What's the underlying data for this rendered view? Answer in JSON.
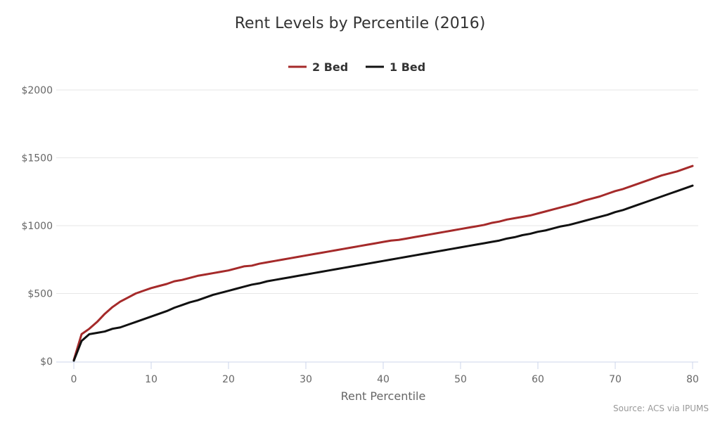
{
  "chart_data": {
    "type": "line",
    "title": "Rent Levels by Percentile (2016)",
    "xlabel": "Rent Percentile",
    "ylabel": "",
    "source": "Source: ACS via IPUMS",
    "legend_position": "top-center",
    "grid": true,
    "xlim": [
      0,
      80
    ],
    "ylim": [
      0,
      2000
    ],
    "x_ticks": [
      0,
      10,
      20,
      30,
      40,
      50,
      60,
      70,
      80
    ],
    "y_ticks": [
      0,
      500,
      1000,
      1500,
      2000
    ],
    "y_tick_labels": [
      "$0",
      "$500",
      "$1000",
      "$1500",
      "$2000"
    ],
    "x": [
      0,
      1,
      2,
      3,
      4,
      5,
      6,
      7,
      8,
      9,
      10,
      11,
      12,
      13,
      14,
      15,
      16,
      17,
      18,
      19,
      20,
      21,
      22,
      23,
      24,
      25,
      26,
      27,
      28,
      29,
      30,
      31,
      32,
      33,
      34,
      35,
      36,
      37,
      38,
      39,
      40,
      41,
      42,
      43,
      44,
      45,
      46,
      47,
      48,
      49,
      50,
      51,
      52,
      53,
      54,
      55,
      56,
      57,
      58,
      59,
      60,
      61,
      62,
      63,
      64,
      65,
      66,
      67,
      68,
      69,
      70,
      71,
      72,
      73,
      74,
      75,
      76,
      77,
      78,
      79,
      80
    ],
    "series": [
      {
        "name": "2 Bed",
        "color": "#a52a2a",
        "values": [
          10,
          200,
          240,
          290,
          350,
          400,
          440,
          470,
          500,
          520,
          540,
          555,
          570,
          590,
          600,
          615,
          630,
          640,
          650,
          660,
          670,
          685,
          700,
          705,
          720,
          730,
          740,
          750,
          760,
          770,
          780,
          790,
          800,
          810,
          820,
          830,
          840,
          850,
          860,
          870,
          880,
          890,
          895,
          905,
          915,
          925,
          935,
          945,
          955,
          965,
          975,
          985,
          995,
          1005,
          1020,
          1030,
          1045,
          1055,
          1065,
          1075,
          1090,
          1105,
          1120,
          1135,
          1150,
          1165,
          1185,
          1200,
          1215,
          1235,
          1255,
          1270,
          1290,
          1310,
          1330,
          1350,
          1370,
          1385,
          1400,
          1420,
          1440
        ]
      },
      {
        "name": "1 Bed",
        "color": "#111111",
        "values": [
          5,
          150,
          200,
          210,
          220,
          240,
          250,
          270,
          290,
          310,
          330,
          350,
          370,
          395,
          415,
          435,
          450,
          470,
          490,
          505,
          520,
          535,
          550,
          565,
          575,
          590,
          600,
          610,
          620,
          630,
          640,
          650,
          660,
          670,
          680,
          690,
          700,
          710,
          720,
          730,
          740,
          750,
          760,
          770,
          780,
          790,
          800,
          810,
          820,
          830,
          840,
          850,
          860,
          870,
          880,
          890,
          905,
          915,
          930,
          940,
          955,
          965,
          980,
          995,
          1005,
          1020,
          1035,
          1050,
          1065,
          1080,
          1100,
          1115,
          1135,
          1155,
          1175,
          1195,
          1215,
          1235,
          1255,
          1275,
          1295
        ]
      }
    ]
  }
}
